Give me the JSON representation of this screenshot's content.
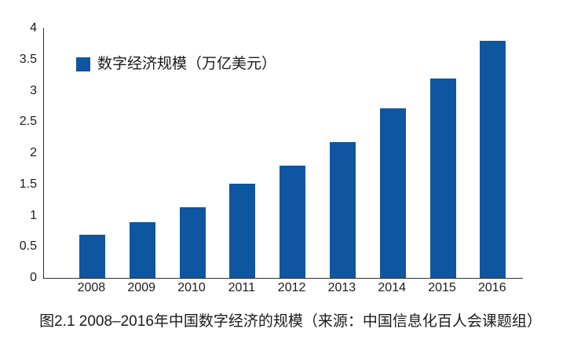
{
  "chart_data": {
    "type": "bar",
    "title": "",
    "legend": "数字经济规模（万亿美元）",
    "caption": "图2.1 2008–2016年中国数字经济的规模（来源：中国信息化百人会课题组）",
    "categories": [
      "2008",
      "2009",
      "2010",
      "2011",
      "2012",
      "2013",
      "2014",
      "2015",
      "2016"
    ],
    "values": [
      0.69,
      0.89,
      1.13,
      1.51,
      1.8,
      2.18,
      2.72,
      3.2,
      3.8
    ],
    "xlabel": "",
    "ylabel": "",
    "ylim": [
      0,
      4
    ],
    "yticks": [
      "0",
      "0.5",
      "1",
      "1.5",
      "2",
      "2.5",
      "3",
      "3.5",
      "4"
    ],
    "grid": false,
    "legend_position": "inside-top-left",
    "colors": {
      "bar": "#0f56a0",
      "axis": "#2f2f2f",
      "text": "#1b1b1b",
      "background": "#ffffff"
    }
  }
}
